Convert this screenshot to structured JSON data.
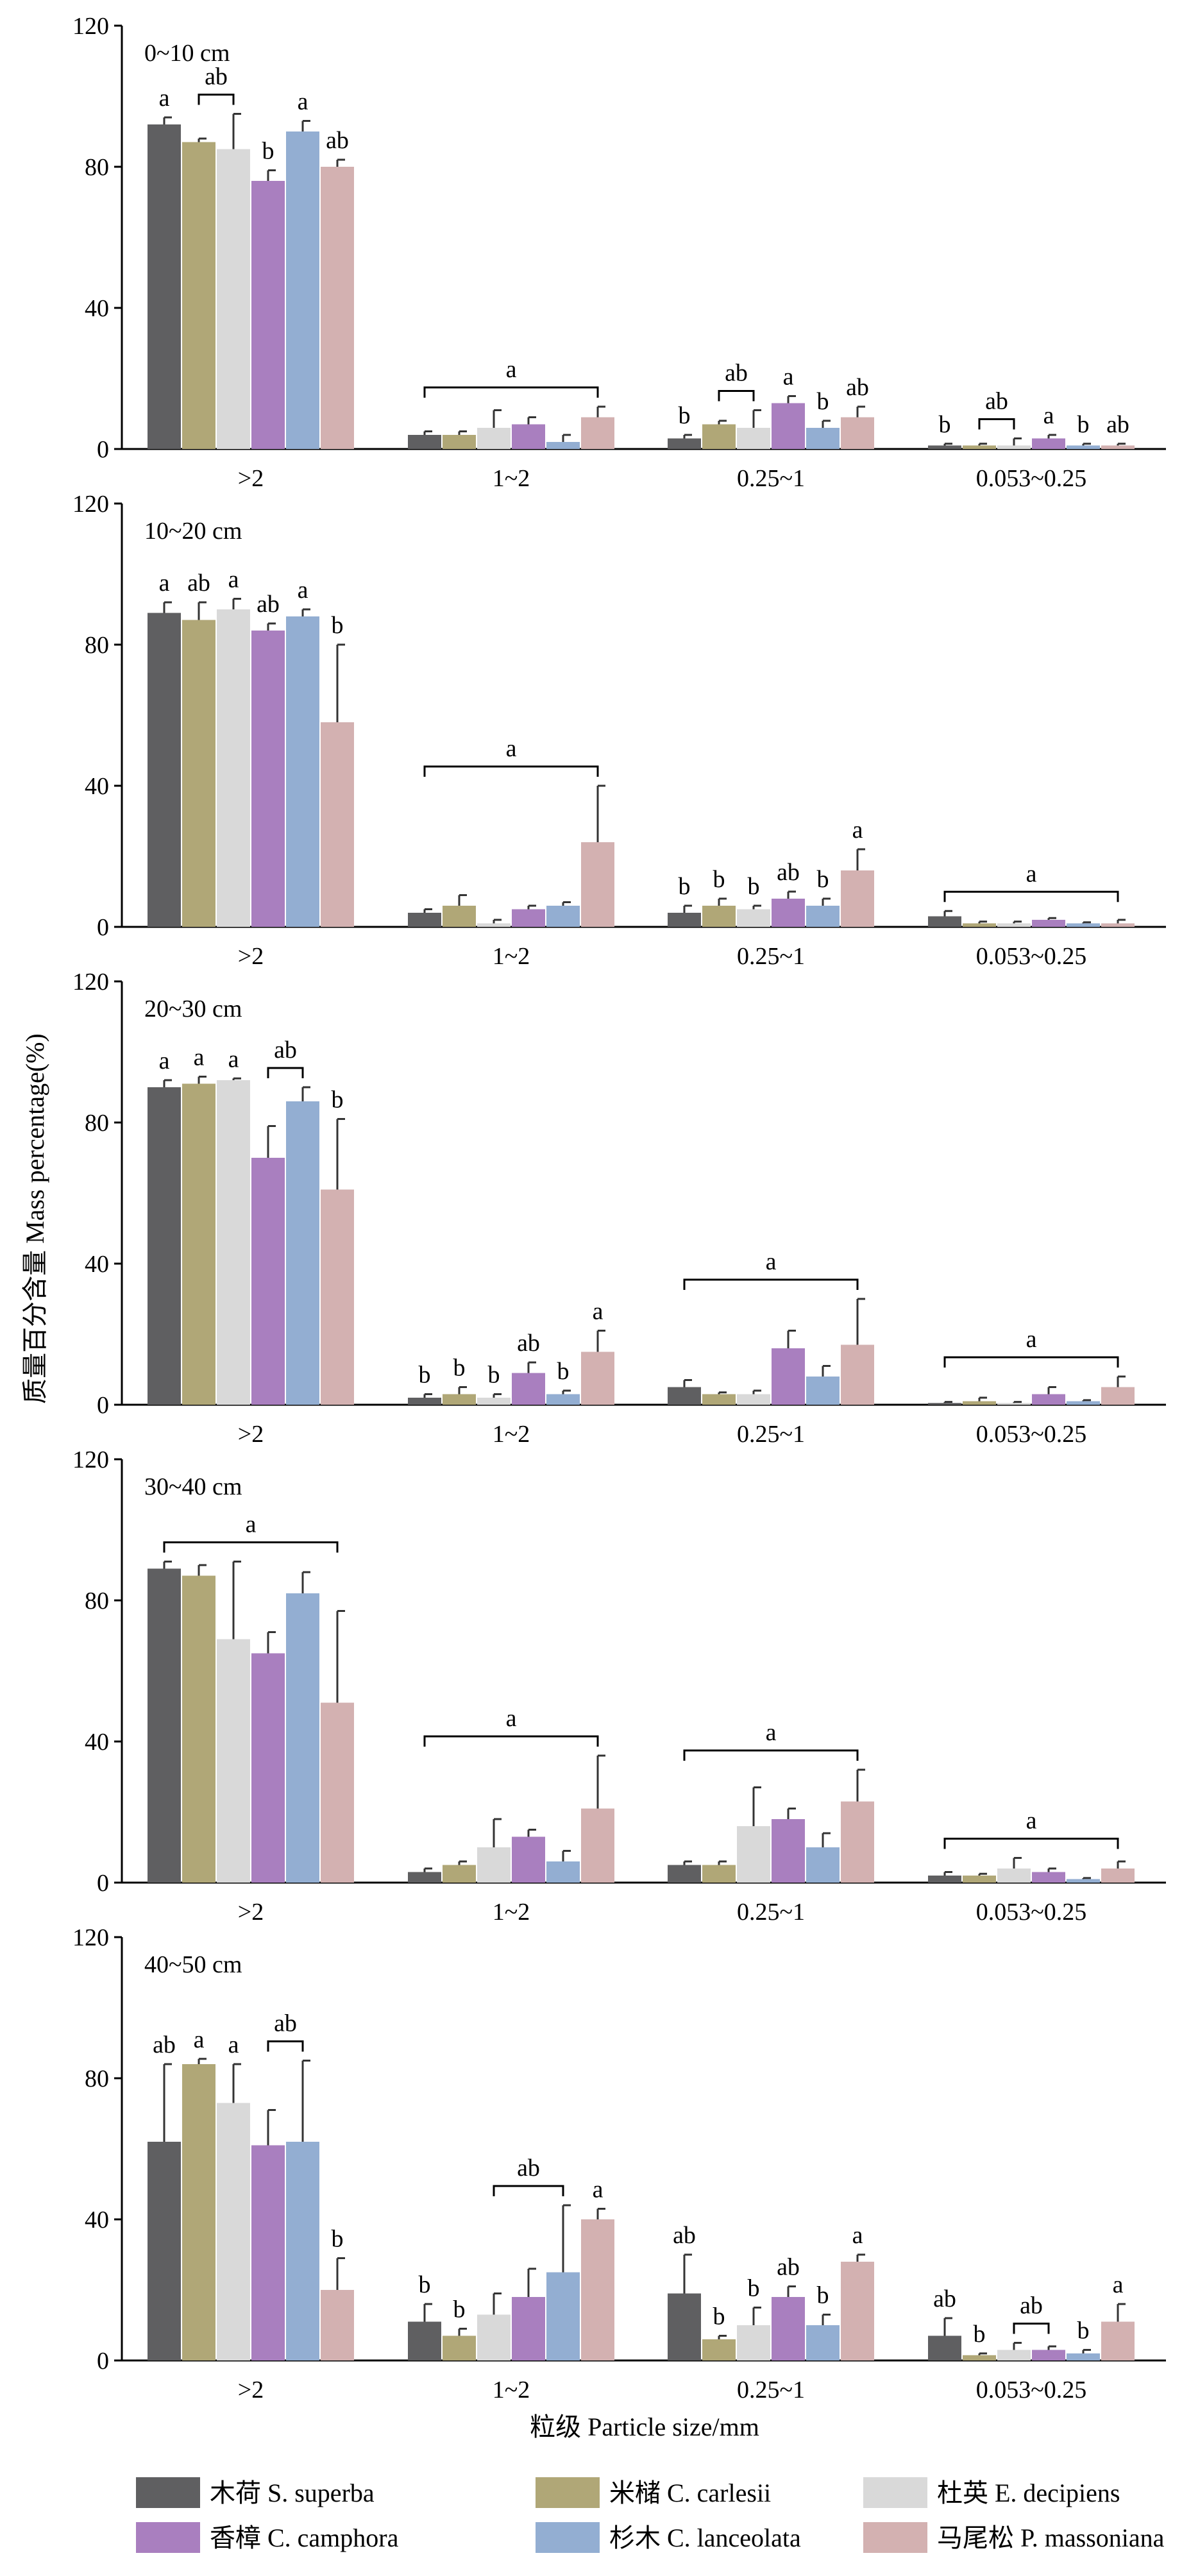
{
  "chart_data": {
    "type": "bar",
    "ylabel": "质量百分含量 Mass percentage(%)",
    "xlabel": "粒级 Particle size/mm",
    "ylim": [
      0,
      120
    ],
    "yticks": [
      0,
      40,
      80,
      120
    ],
    "categories": [
      ">2",
      "1~2",
      "0.25~1",
      "0.053~0.25"
    ],
    "species": [
      {
        "name": "木荷 S. superba",
        "color": "#5f5f61"
      },
      {
        "name": "米槠 C. carlesii",
        "color": "#b0a777"
      },
      {
        "name": "杜英 E. decipiens",
        "color": "#d9d9d9"
      },
      {
        "name": "香樟 C. camphora",
        "color": "#a97fbf"
      },
      {
        "name": "杉木 C. lanceolata",
        "color": "#93aed2"
      },
      {
        "name": "马尾松 P. massoniana",
        "color": "#d3b1b1"
      }
    ],
    "panels": [
      {
        "label": "0~10 cm",
        "series": [
          {
            "values": [
              92,
              4,
              3,
              1
            ],
            "errors": [
              2,
              1,
              1,
              0.5
            ]
          },
          {
            "values": [
              87,
              4,
              7,
              1
            ],
            "errors": [
              1,
              1,
              1,
              0.5
            ]
          },
          {
            "values": [
              85,
              6,
              6,
              1
            ],
            "errors": [
              10,
              5,
              5,
              2
            ]
          },
          {
            "values": [
              76,
              7,
              13,
              3
            ],
            "errors": [
              3,
              2,
              2,
              1
            ]
          },
          {
            "values": [
              90,
              2,
              6,
              1
            ],
            "errors": [
              3,
              2,
              2,
              0.5
            ]
          },
          {
            "values": [
              80,
              9,
              9,
              1
            ],
            "errors": [
              2,
              3,
              3,
              0.5
            ]
          }
        ],
        "annotations": [
          {
            "category": 0,
            "single": [
              [
                "a",
                0
              ],
              [
                "b",
                3
              ],
              [
                "a",
                4
              ],
              [
                "ab",
                5
              ]
            ],
            "brackets": [
              {
                "from": 1,
                "to": 2,
                "text": "ab"
              }
            ]
          },
          {
            "category": 1,
            "single": [],
            "brackets": [
              {
                "from": 0,
                "to": 5,
                "text": "a"
              }
            ]
          },
          {
            "category": 2,
            "single": [
              [
                "b",
                0
              ],
              [
                "a",
                3
              ],
              [
                "b",
                4
              ],
              [
                "ab",
                5
              ]
            ],
            "brackets": [
              {
                "from": 1,
                "to": 2,
                "text": "ab"
              }
            ]
          },
          {
            "category": 3,
            "single": [
              [
                "b",
                0
              ],
              [
                "a",
                3
              ],
              [
                "b",
                4
              ],
              [
                "ab",
                5
              ]
            ],
            "brackets": [
              {
                "from": 1,
                "to": 2,
                "text": "ab"
              }
            ]
          }
        ]
      },
      {
        "label": "10~20 cm",
        "series": [
          {
            "values": [
              89,
              4,
              4,
              3
            ],
            "errors": [
              3,
              1,
              2,
              1.5
            ]
          },
          {
            "values": [
              87,
              6,
              6,
              1
            ],
            "errors": [
              5,
              3,
              2,
              0.5
            ]
          },
          {
            "values": [
              90,
              1,
              5,
              1
            ],
            "errors": [
              3,
              1,
              1,
              0.5
            ]
          },
          {
            "values": [
              84,
              5,
              8,
              2
            ],
            "errors": [
              2,
              1,
              2,
              0.5
            ]
          },
          {
            "values": [
              88,
              6,
              6,
              1
            ],
            "errors": [
              2,
              1,
              2,
              0.3
            ]
          },
          {
            "values": [
              58,
              24,
              16,
              1
            ],
            "errors": [
              22,
              16,
              6,
              1
            ]
          }
        ],
        "annotations": [
          {
            "category": 0,
            "single": [
              [
                "a",
                0
              ],
              [
                "ab",
                1
              ],
              [
                "a",
                2
              ],
              [
                "ab",
                3
              ],
              [
                "a",
                4
              ],
              [
                "b",
                5
              ]
            ],
            "brackets": []
          },
          {
            "category": 1,
            "single": [],
            "brackets": [
              {
                "from": 0,
                "to": 5,
                "text": "a"
              }
            ]
          },
          {
            "category": 2,
            "single": [
              [
                "b",
                0
              ],
              [
                "b",
                1
              ],
              [
                "b",
                2
              ],
              [
                "ab",
                3
              ],
              [
                "b",
                4
              ],
              [
                "a",
                5
              ]
            ],
            "brackets": []
          },
          {
            "category": 3,
            "single": [],
            "brackets": [
              {
                "from": 0,
                "to": 5,
                "text": "a"
              }
            ]
          }
        ]
      },
      {
        "label": "20~30 cm",
        "series": [
          {
            "values": [
              90,
              2,
              5,
              0.5
            ],
            "errors": [
              2,
              1,
              2,
              0.3
            ]
          },
          {
            "values": [
              91,
              3,
              3,
              1
            ],
            "errors": [
              2,
              2,
              0.5,
              1
            ]
          },
          {
            "values": [
              92,
              2,
              3,
              0.5
            ],
            "errors": [
              0.5,
              1,
              1,
              0.3
            ]
          },
          {
            "values": [
              70,
              9,
              16,
              3
            ],
            "errors": [
              9,
              3,
              5,
              2
            ]
          },
          {
            "values": [
              86,
              3,
              8,
              1
            ],
            "errors": [
              4,
              1,
              3,
              0.3
            ]
          },
          {
            "values": [
              61,
              15,
              17,
              5
            ],
            "errors": [
              20,
              6,
              13,
              3
            ]
          }
        ],
        "annotations": [
          {
            "category": 0,
            "single": [
              [
                "a",
                0
              ],
              [
                "a",
                1
              ],
              [
                "a",
                2
              ],
              [
                "b",
                5
              ]
            ],
            "brackets": [
              {
                "from": 3,
                "to": 4,
                "text": "ab"
              }
            ]
          },
          {
            "category": 1,
            "single": [
              [
                "b",
                0
              ],
              [
                "b",
                1
              ],
              [
                "b",
                2
              ],
              [
                "ab",
                3
              ],
              [
                "b",
                4
              ],
              [
                "a",
                5
              ]
            ],
            "brackets": []
          },
          {
            "category": 2,
            "single": [],
            "brackets": [
              {
                "from": 0,
                "to": 5,
                "text": "a"
              }
            ]
          },
          {
            "category": 3,
            "single": [],
            "brackets": [
              {
                "from": 0,
                "to": 5,
                "text": "a"
              }
            ]
          }
        ]
      },
      {
        "label": "30~40 cm",
        "series": [
          {
            "values": [
              89,
              3,
              5,
              2
            ],
            "errors": [
              2,
              1,
              1,
              1
            ]
          },
          {
            "values": [
              87,
              5,
              5,
              2
            ],
            "errors": [
              3,
              1,
              1,
              0.5
            ]
          },
          {
            "values": [
              69,
              10,
              16,
              4
            ],
            "errors": [
              22,
              8,
              11,
              3
            ]
          },
          {
            "values": [
              65,
              13,
              18,
              3
            ],
            "errors": [
              6,
              2,
              3,
              1
            ]
          },
          {
            "values": [
              82,
              6,
              10,
              1
            ],
            "errors": [
              6,
              3,
              4,
              0.3
            ]
          },
          {
            "values": [
              51,
              21,
              23,
              4
            ],
            "errors": [
              26,
              15,
              9,
              2
            ]
          }
        ],
        "annotations": [
          {
            "category": 0,
            "single": [],
            "brackets": [
              {
                "from": 0,
                "to": 5,
                "text": "a"
              }
            ]
          },
          {
            "category": 1,
            "single": [],
            "brackets": [
              {
                "from": 0,
                "to": 5,
                "text": "a"
              }
            ]
          },
          {
            "category": 2,
            "single": [],
            "brackets": [
              {
                "from": 0,
                "to": 5,
                "text": "a"
              }
            ]
          },
          {
            "category": 3,
            "single": [],
            "brackets": [
              {
                "from": 0,
                "to": 5,
                "text": "a"
              }
            ]
          }
        ]
      },
      {
        "label": "40~50 cm",
        "series": [
          {
            "values": [
              62,
              11,
              19,
              7
            ],
            "errors": [
              22,
              5,
              11,
              5
            ]
          },
          {
            "values": [
              84,
              7,
              6,
              1.5
            ],
            "errors": [
              1.5,
              2,
              1,
              0.5
            ]
          },
          {
            "values": [
              73,
              13,
              10,
              3
            ],
            "errors": [
              11,
              6,
              5,
              2
            ]
          },
          {
            "values": [
              61,
              18,
              18,
              3
            ],
            "errors": [
              10,
              8,
              3,
              1
            ]
          },
          {
            "values": [
              62,
              25,
              10,
              2
            ],
            "errors": [
              23,
              19,
              3,
              1
            ]
          },
          {
            "values": [
              20,
              40,
              28,
              11
            ],
            "errors": [
              9,
              3,
              2,
              5
            ]
          }
        ],
        "annotations": [
          {
            "category": 0,
            "single": [
              [
                "ab",
                0
              ],
              [
                "a",
                1
              ],
              [
                "a",
                2
              ],
              [
                "b",
                5
              ]
            ],
            "brackets": [
              {
                "from": 3,
                "to": 4,
                "text": "ab"
              }
            ]
          },
          {
            "category": 1,
            "single": [
              [
                "b",
                0
              ],
              [
                "b",
                1
              ],
              [
                "a",
                5
              ]
            ],
            "brackets": [
              {
                "from": 2,
                "to": 4,
                "text": "ab"
              }
            ]
          },
          {
            "category": 2,
            "single": [
              [
                "ab",
                0
              ],
              [
                "b",
                1
              ],
              [
                "b",
                2
              ],
              [
                "ab",
                3
              ],
              [
                "b",
                4
              ],
              [
                "a",
                5
              ]
            ],
            "brackets": []
          },
          {
            "category": 3,
            "single": [
              [
                "ab",
                0
              ],
              [
                "b",
                1
              ],
              [
                "b",
                4
              ],
              [
                "a",
                5
              ]
            ],
            "brackets": [
              {
                "from": 2,
                "to": 3,
                "text": "ab"
              }
            ]
          }
        ]
      }
    ]
  }
}
